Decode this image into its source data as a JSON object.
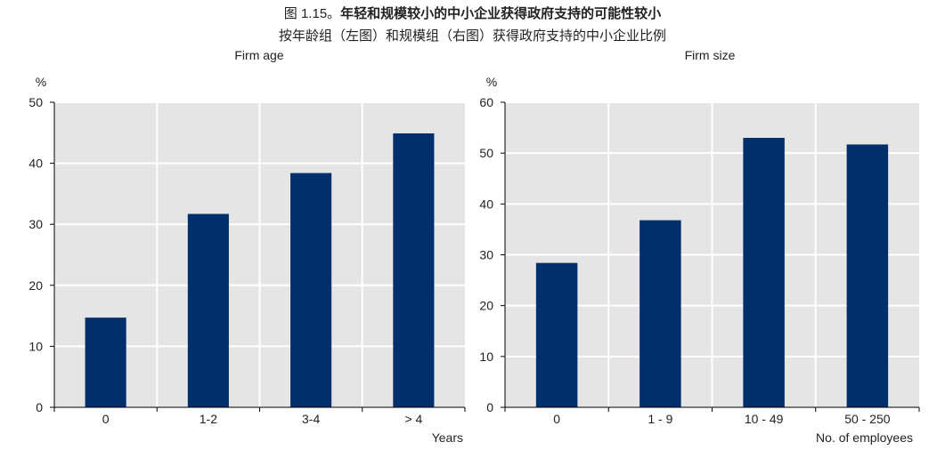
{
  "figure": {
    "number": "图 1.15。",
    "title": "年轻和规模较小的中小企业获得政府支持的可能性较小",
    "subtitle": "按年龄组（左图）和规模组（右图）获得政府支持的中小企业比例"
  },
  "colors": {
    "bar": "#002F6C",
    "plot_background": "#E5E5E5",
    "gridline": "#FFFFFF",
    "axis": "#000000"
  },
  "chart_data": [
    {
      "type": "bar",
      "title": "Firm age",
      "ylabel": "%",
      "xlabel": "Years",
      "categories": [
        "0",
        "1-2",
        "3-4",
        "> 4"
      ],
      "values": [
        14.7,
        31.7,
        38.4,
        44.9
      ],
      "ylim": [
        0,
        50
      ],
      "yticks": [
        0,
        10,
        20,
        30,
        40,
        50
      ],
      "grid": true
    },
    {
      "type": "bar",
      "title": "Firm size",
      "ylabel": "%",
      "xlabel": "No. of employees",
      "categories": [
        "0",
        "1 - 9",
        "10 - 49",
        "50 - 250"
      ],
      "values": [
        28.4,
        36.8,
        53.0,
        51.7
      ],
      "ylim": [
        0,
        60
      ],
      "yticks": [
        0,
        10,
        20,
        30,
        40,
        50,
        60
      ],
      "grid": true
    }
  ]
}
